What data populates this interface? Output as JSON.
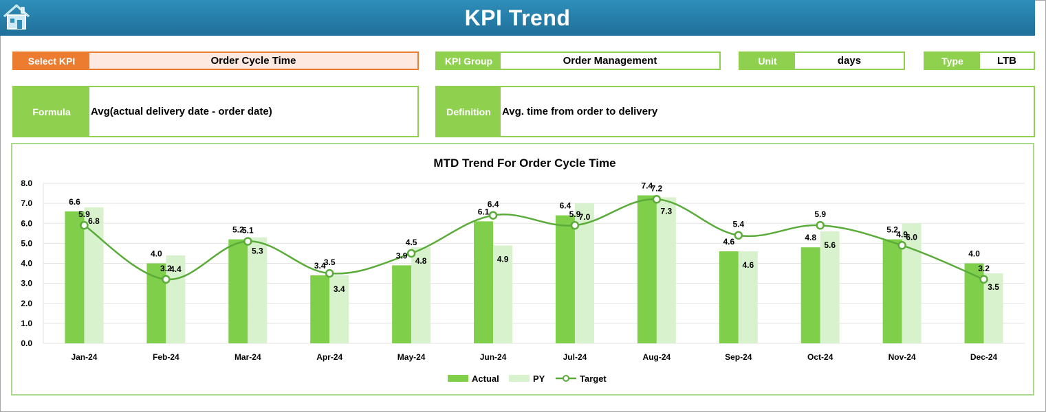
{
  "header": {
    "title": "KPI Trend"
  },
  "kpi_select": {
    "label": "Select KPI",
    "value": "Order Cycle Time"
  },
  "kpi_group": {
    "label": "KPI Group",
    "value": "Order Management"
  },
  "unit": {
    "label": "Unit",
    "value": "days"
  },
  "type": {
    "label": "Type",
    "value": "LTB"
  },
  "formula": {
    "label": "Formula",
    "value": "Avg(actual delivery date - order date)"
  },
  "definition": {
    "label": "Definition",
    "value": "Avg. time from order to delivery"
  },
  "colors": {
    "header": "#1f7aa8",
    "green": "#8fd14f",
    "orange": "#ec7c30",
    "actual": "#7fcf4a",
    "py": "#d9f2ce",
    "target": "#5aab3a"
  },
  "chart_data": {
    "type": "bar",
    "title": "MTD Trend For Order Cycle Time",
    "categories": [
      "Jan-24",
      "Feb-24",
      "Mar-24",
      "Apr-24",
      "May-24",
      "Jun-24",
      "Jul-24",
      "Aug-24",
      "Sep-24",
      "Oct-24",
      "Nov-24",
      "Dec-24"
    ],
    "series": [
      {
        "name": "Actual",
        "values": [
          6.6,
          4.0,
          5.2,
          3.4,
          3.9,
          6.1,
          6.4,
          7.4,
          4.6,
          4.8,
          5.2,
          4.0
        ]
      },
      {
        "name": "PY",
        "values": [
          6.8,
          4.4,
          5.3,
          3.4,
          4.8,
          4.9,
          7.0,
          7.3,
          4.6,
          5.6,
          6.0,
          3.5
        ]
      },
      {
        "name": "Target",
        "values": [
          5.9,
          3.2,
          5.1,
          3.5,
          4.5,
          6.4,
          5.9,
          7.2,
          5.4,
          5.9,
          4.9,
          3.2
        ]
      }
    ],
    "yticks": [
      "0.0",
      "1.0",
      "2.0",
      "3.0",
      "4.0",
      "5.0",
      "6.0",
      "7.0",
      "8.0"
    ],
    "ylim": [
      0,
      8
    ],
    "grid": true,
    "legend": "bottom"
  }
}
